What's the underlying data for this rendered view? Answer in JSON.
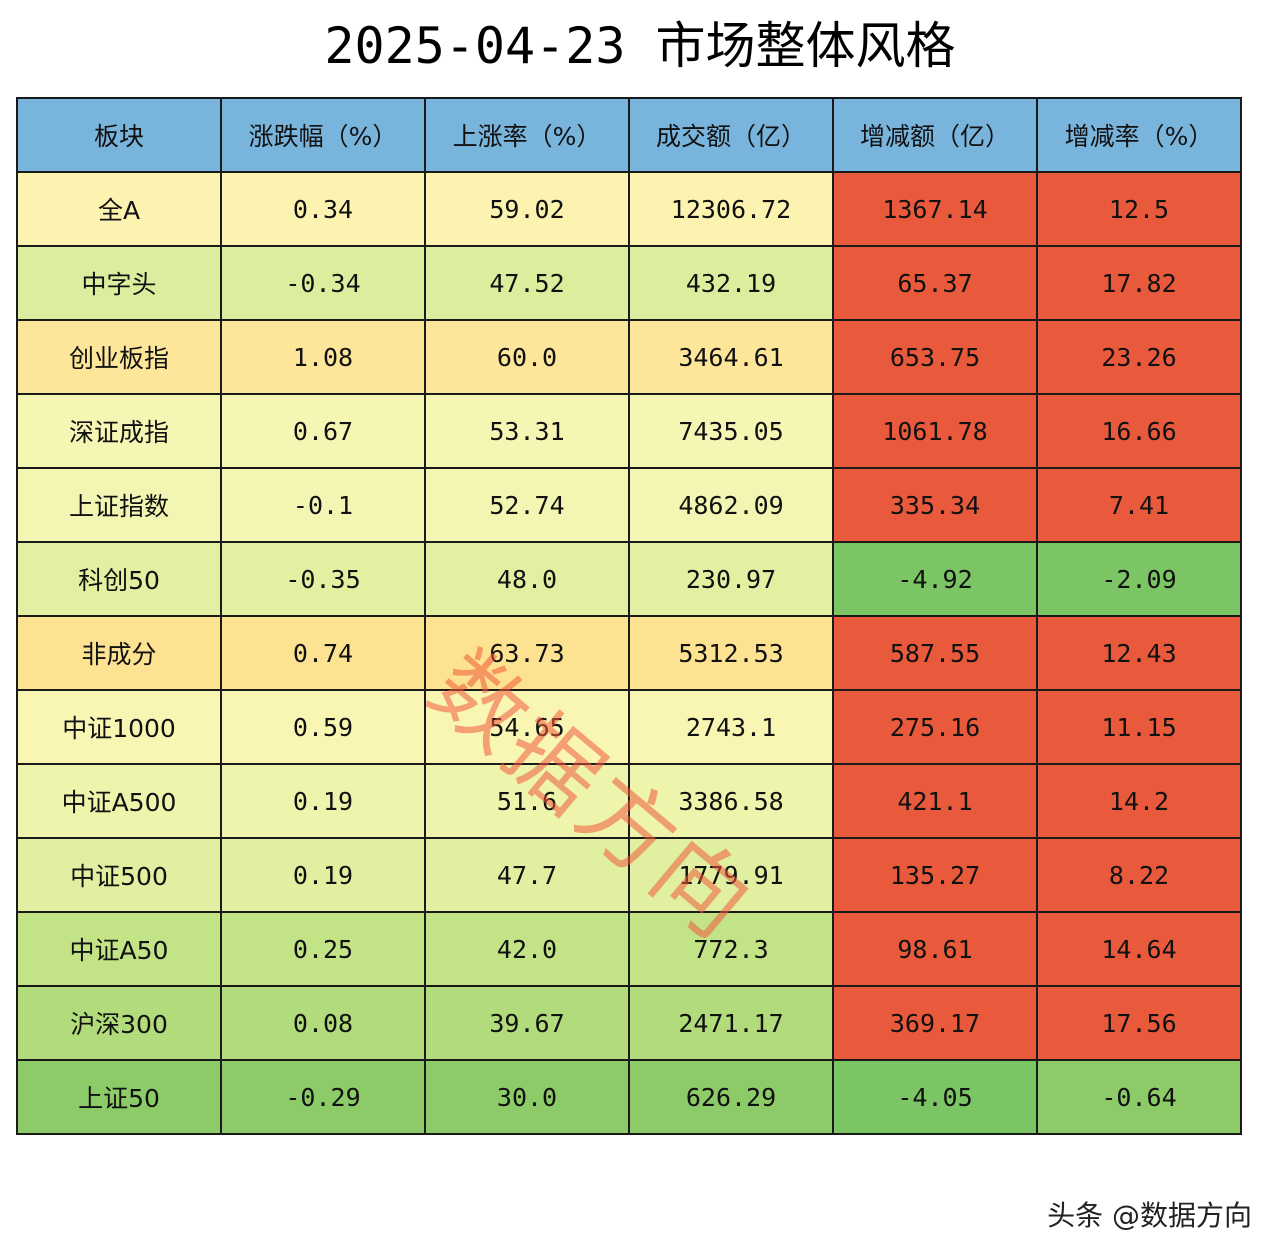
{
  "title": "2025-04-23 市场整体风格",
  "table": {
    "headers": [
      "板块",
      "涨跌幅（%）",
      "上涨率（%）",
      "成交额（亿）",
      "增减额（亿）",
      "增减率（%）"
    ],
    "rows": [
      {
        "name": "全A",
        "change_pct": "0.34",
        "up_ratio": "59.02",
        "turnover": "12306.72",
        "delta": "1367.14",
        "delta_pct": "12.5",
        "colors": {
          "name": "#fdf3b0",
          "change_pct": "#fdf3b0",
          "up_ratio": "#fdf3b0",
          "turnover": "#fdf3b0",
          "delta": "#e95a3c",
          "delta_pct": "#e95a3c"
        }
      },
      {
        "name": "中字头",
        "change_pct": "-0.34",
        "up_ratio": "47.52",
        "turnover": "432.19",
        "delta": "65.37",
        "delta_pct": "17.82",
        "colors": {
          "name": "#dcee9e",
          "change_pct": "#dcee9e",
          "up_ratio": "#dcee9e",
          "turnover": "#dcee9e",
          "delta": "#e95a3c",
          "delta_pct": "#e95a3c"
        }
      },
      {
        "name": "创业板指",
        "change_pct": "1.08",
        "up_ratio": "60.0",
        "turnover": "3464.61",
        "delta": "653.75",
        "delta_pct": "23.26",
        "colors": {
          "name": "#fde69a",
          "change_pct": "#fde69a",
          "up_ratio": "#fde69a",
          "turnover": "#fde69a",
          "delta": "#e95a3c",
          "delta_pct": "#e95a3c"
        }
      },
      {
        "name": "深证成指",
        "change_pct": "0.67",
        "up_ratio": "53.31",
        "turnover": "7435.05",
        "delta": "1061.78",
        "delta_pct": "16.66",
        "colors": {
          "name": "#f6f6b4",
          "change_pct": "#f6f6b4",
          "up_ratio": "#f6f6b4",
          "turnover": "#f6f6b4",
          "delta": "#e95a3c",
          "delta_pct": "#e95a3c"
        }
      },
      {
        "name": "上证指数",
        "change_pct": "-0.1",
        "up_ratio": "52.74",
        "turnover": "4862.09",
        "delta": "335.34",
        "delta_pct": "7.41",
        "colors": {
          "name": "#f3f6b2",
          "change_pct": "#f3f6b2",
          "up_ratio": "#f3f6b2",
          "turnover": "#f3f6b2",
          "delta": "#e95a3c",
          "delta_pct": "#e95a3c"
        }
      },
      {
        "name": "科创50",
        "change_pct": "-0.35",
        "up_ratio": "48.0",
        "turnover": "230.97",
        "delta": "-4.92",
        "delta_pct": "-2.09",
        "colors": {
          "name": "#e2f0a2",
          "change_pct": "#e2f0a2",
          "up_ratio": "#e2f0a2",
          "turnover": "#e2f0a2",
          "delta": "#7cc564",
          "delta_pct": "#7cc564"
        }
      },
      {
        "name": "非成分",
        "change_pct": "0.74",
        "up_ratio": "63.73",
        "turnover": "5312.53",
        "delta": "587.55",
        "delta_pct": "12.43",
        "colors": {
          "name": "#fde391",
          "change_pct": "#fde391",
          "up_ratio": "#fde391",
          "turnover": "#fde391",
          "delta": "#e95a3c",
          "delta_pct": "#e95a3c"
        }
      },
      {
        "name": "中证1000",
        "change_pct": "0.59",
        "up_ratio": "54.65",
        "turnover": "2743.1",
        "delta": "275.16",
        "delta_pct": "11.15",
        "colors": {
          "name": "#f9f6b4",
          "change_pct": "#f9f6b4",
          "up_ratio": "#f9f6b4",
          "turnover": "#f9f6b4",
          "delta": "#e95a3c",
          "delta_pct": "#e95a3c"
        }
      },
      {
        "name": "中证A500",
        "change_pct": "0.19",
        "up_ratio": "51.6",
        "turnover": "3386.58",
        "delta": "421.1",
        "delta_pct": "14.2",
        "colors": {
          "name": "#eef4ab",
          "change_pct": "#eef4ab",
          "up_ratio": "#eef4ab",
          "turnover": "#eef4ab",
          "delta": "#e95a3c",
          "delta_pct": "#e95a3c"
        }
      },
      {
        "name": "中证500",
        "change_pct": "0.19",
        "up_ratio": "47.7",
        "turnover": "1779.91",
        "delta": "135.27",
        "delta_pct": "8.22",
        "colors": {
          "name": "#e0efa0",
          "change_pct": "#e0efa0",
          "up_ratio": "#e0efa0",
          "turnover": "#e0efa0",
          "delta": "#e95a3c",
          "delta_pct": "#e95a3c"
        }
      },
      {
        "name": "中证A50",
        "change_pct": "0.25",
        "up_ratio": "42.0",
        "turnover": "772.3",
        "delta": "98.61",
        "delta_pct": "14.64",
        "colors": {
          "name": "#c3e387",
          "change_pct": "#c3e387",
          "up_ratio": "#c3e387",
          "turnover": "#c3e387",
          "delta": "#e95a3c",
          "delta_pct": "#e95a3c"
        }
      },
      {
        "name": "沪深300",
        "change_pct": "0.08",
        "up_ratio": "39.67",
        "turnover": "2471.17",
        "delta": "369.17",
        "delta_pct": "17.56",
        "colors": {
          "name": "#b2db7b",
          "change_pct": "#b2db7b",
          "up_ratio": "#b2db7b",
          "turnover": "#b2db7b",
          "delta": "#e95a3c",
          "delta_pct": "#e95a3c"
        }
      },
      {
        "name": "上证50",
        "change_pct": "-0.29",
        "up_ratio": "30.0",
        "turnover": "626.29",
        "delta": "-4.05",
        "delta_pct": "-0.64",
        "colors": {
          "name": "#8ccb68",
          "change_pct": "#8ccb68",
          "up_ratio": "#8ccb68",
          "turnover": "#8ccb68",
          "delta": "#7cc564",
          "delta_pct": "#8ccb68"
        }
      }
    ]
  },
  "watermark": "数据方向",
  "credit": "头条 @数据方向",
  "colors": {
    "header_bg": "#79b4dc",
    "up_red": "#e95a3c",
    "down_green": "#7cc564"
  }
}
